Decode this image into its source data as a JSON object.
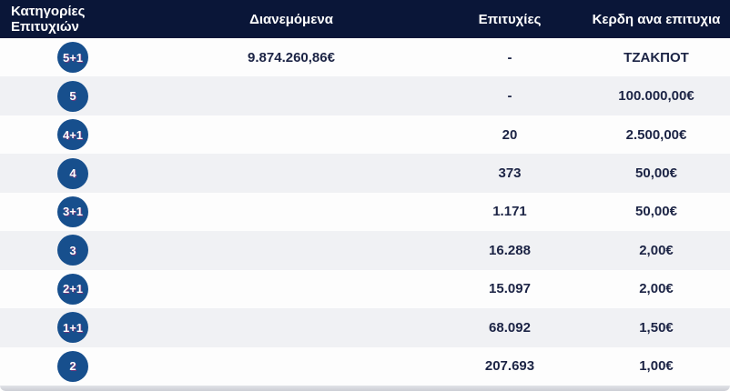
{
  "table": {
    "headers": [
      "Κατηγορίες Επιτυχιών",
      "Διανεμόμενα",
      "Επιτυχίες",
      "Κερδη ανα επιτυχια"
    ],
    "rows": [
      {
        "category": "5+1",
        "distributed": "9.874.260,86€",
        "wins": "-",
        "prize": "ΤΖΑΚΠΟΤ"
      },
      {
        "category": "5",
        "distributed": "",
        "wins": "-",
        "prize": "100.000,00€"
      },
      {
        "category": "4+1",
        "distributed": "",
        "wins": "20",
        "prize": "2.500,00€"
      },
      {
        "category": "4",
        "distributed": "",
        "wins": "373",
        "prize": "50,00€"
      },
      {
        "category": "3+1",
        "distributed": "",
        "wins": "1.171",
        "prize": "50,00€"
      },
      {
        "category": "3",
        "distributed": "",
        "wins": "16.288",
        "prize": "2,00€"
      },
      {
        "category": "2+1",
        "distributed": "",
        "wins": "15.097",
        "prize": "2,00€"
      },
      {
        "category": "1+1",
        "distributed": "",
        "wins": "68.092",
        "prize": "1,50€"
      },
      {
        "category": "2",
        "distributed": "",
        "wins": "207.693",
        "prize": "1,00€"
      }
    ]
  },
  "colors": {
    "header_bg": "#0a1638",
    "row_white": "#fdfdfd",
    "row_gray": "#f0f1f4",
    "badge_blue": "#174f8d",
    "text_navy": "#1c2445"
  }
}
